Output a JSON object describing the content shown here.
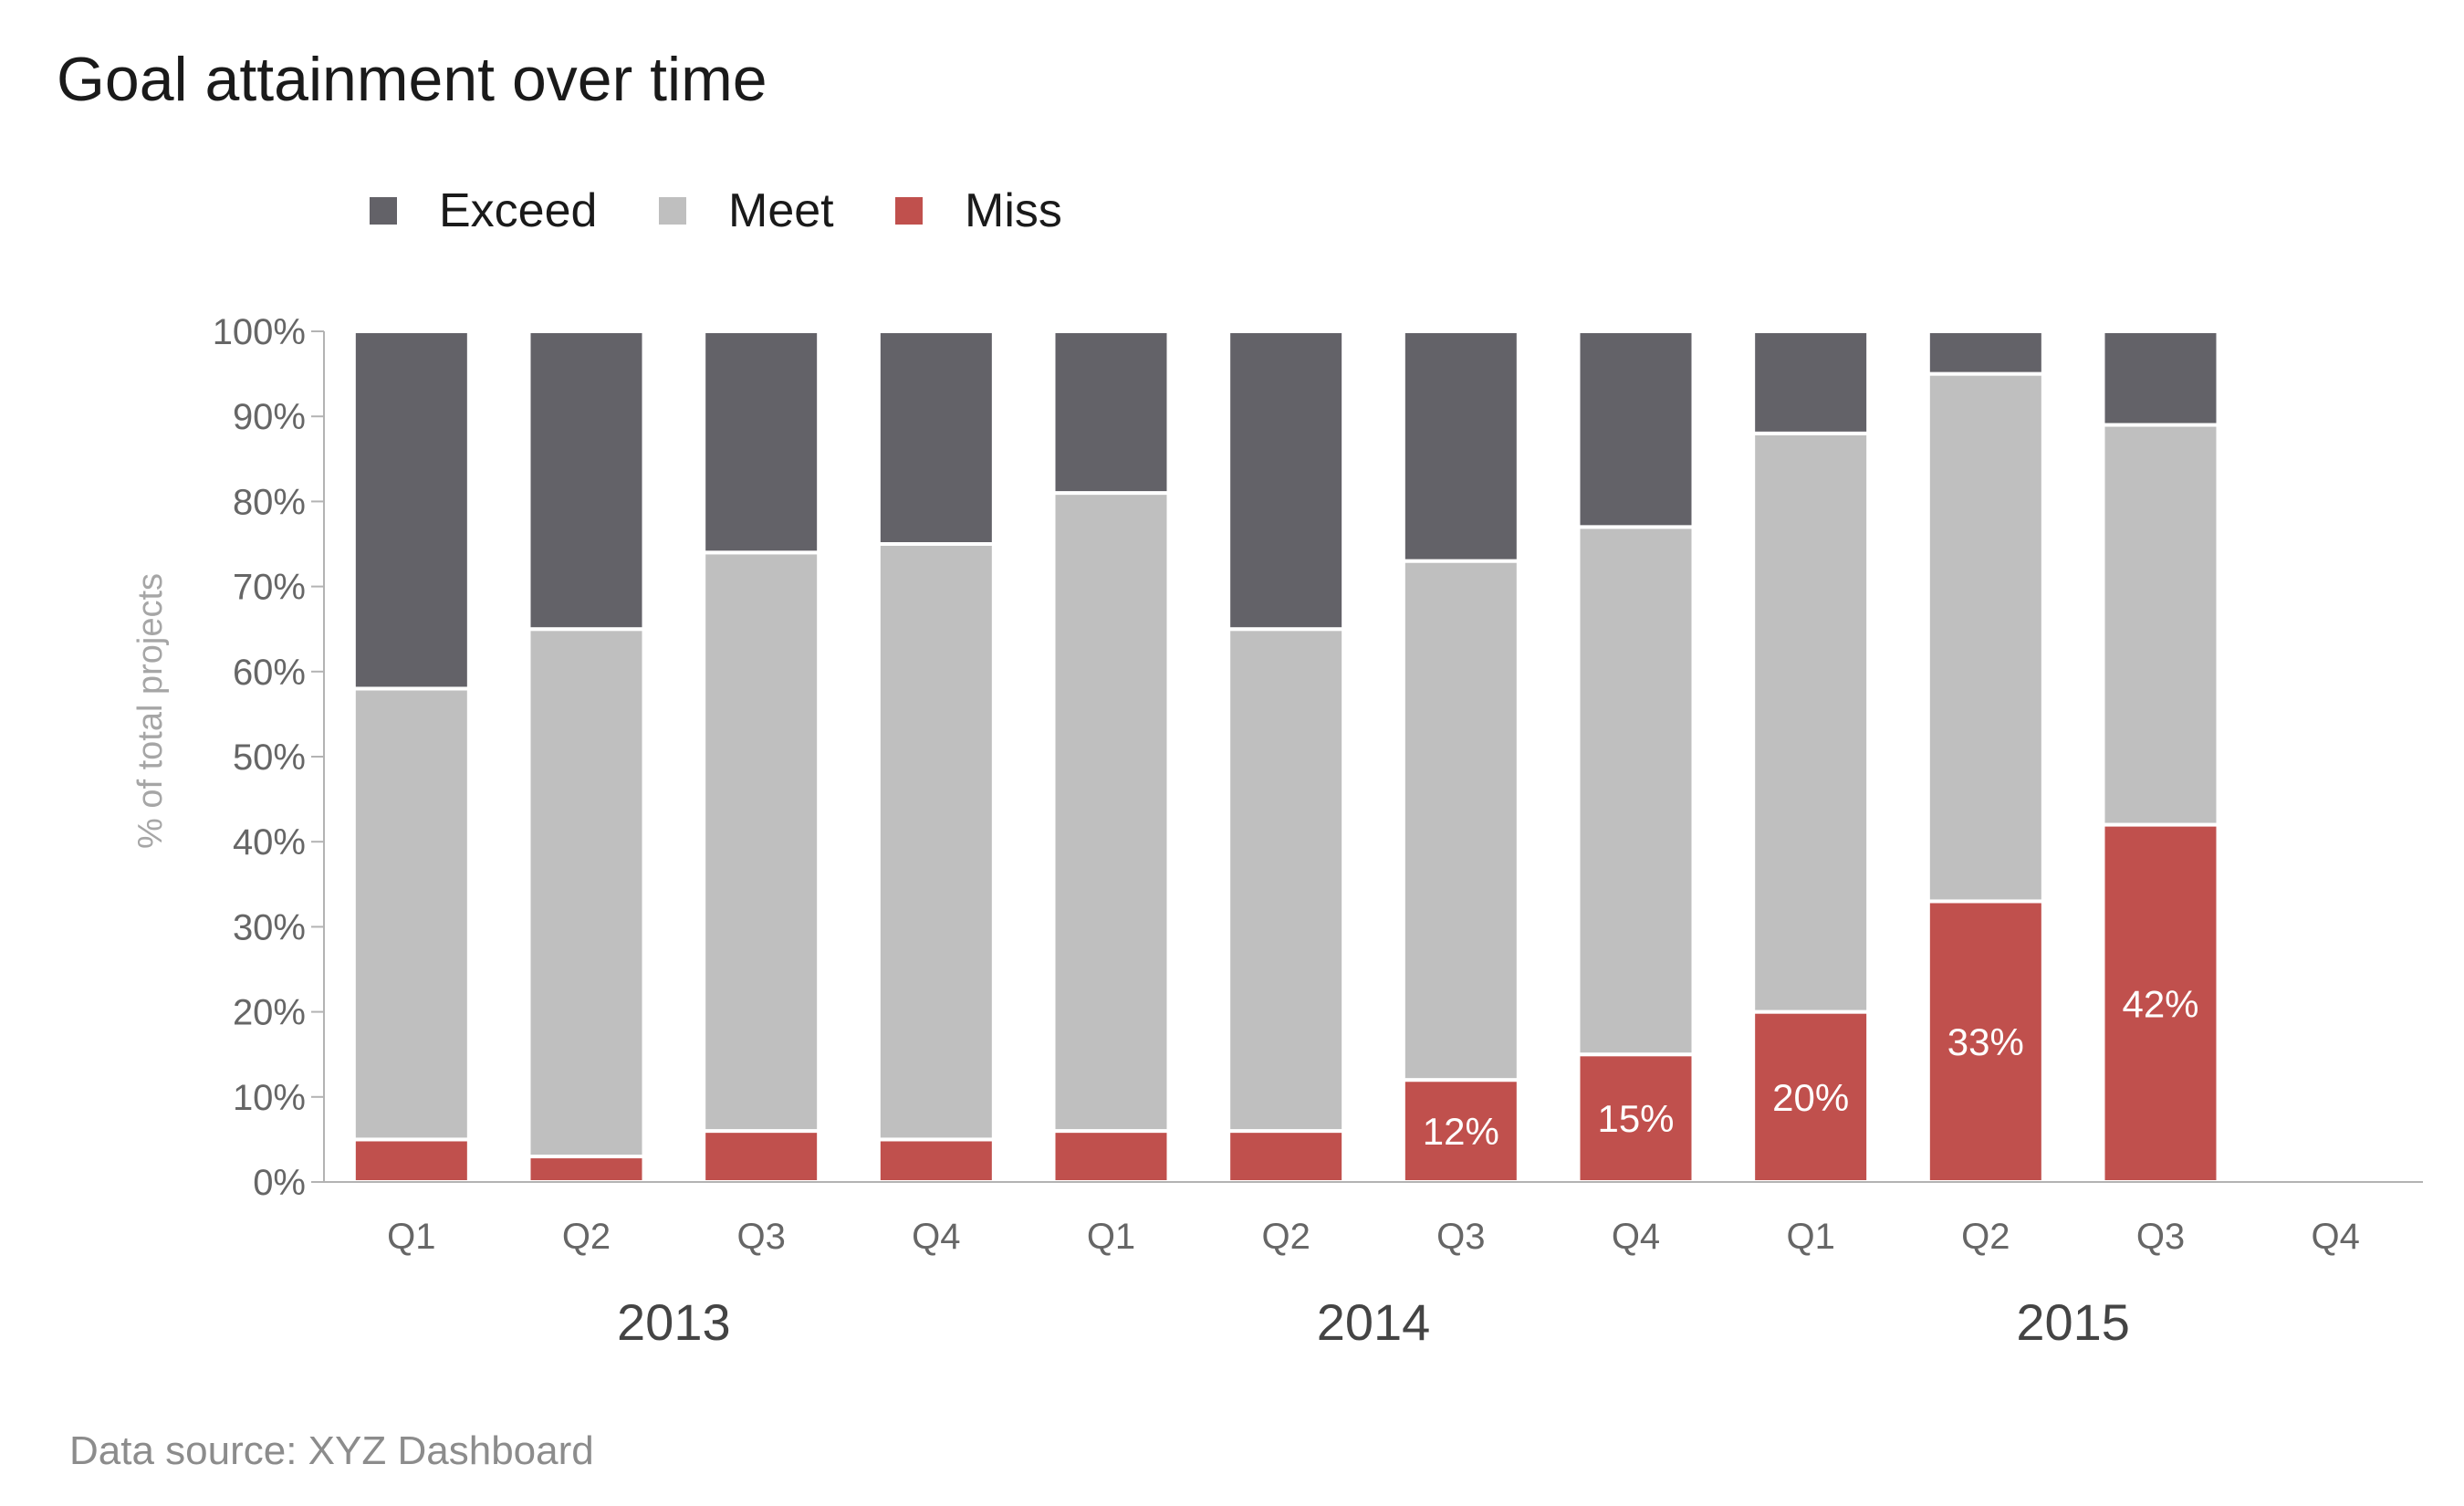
{
  "title": "Goal attainment over time",
  "source": "Data source: XYZ Dashboard",
  "colors": {
    "Exceed": "#636268",
    "Meet": "#bfbfbf",
    "Miss": "#c0504d",
    "axis": "#b3b3b3",
    "tick_text": "#666666",
    "ylabel": "#a6a6a6"
  },
  "chart_data": {
    "type": "bar",
    "stacked": true,
    "categories": [
      "Q1",
      "Q2",
      "Q3",
      "Q4",
      "Q1",
      "Q2",
      "Q3",
      "Q4",
      "Q1",
      "Q2",
      "Q3",
      "Q4"
    ],
    "groups": [
      {
        "label": "2013",
        "span": [
          0,
          3
        ]
      },
      {
        "label": "2014",
        "span": [
          4,
          7
        ]
      },
      {
        "label": "2015",
        "span": [
          8,
          11
        ]
      }
    ],
    "series": [
      {
        "name": "Miss",
        "values": [
          5,
          3,
          6,
          5,
          6,
          6,
          12,
          15,
          20,
          33,
          42,
          null
        ]
      },
      {
        "name": "Meet",
        "values": [
          53,
          62,
          68,
          70,
          75,
          59,
          61,
          62,
          68,
          62,
          47,
          null
        ]
      },
      {
        "name": "Exceed",
        "values": [
          42,
          35,
          26,
          25,
          19,
          35,
          27,
          23,
          12,
          5,
          11,
          null
        ]
      }
    ],
    "legend_order": [
      "Exceed",
      "Meet",
      "Miss"
    ],
    "data_labels": [
      {
        "index": 6,
        "text": "12%"
      },
      {
        "index": 7,
        "text": "15%"
      },
      {
        "index": 8,
        "text": "20%"
      },
      {
        "index": 9,
        "text": "33%"
      },
      {
        "index": 10,
        "text": "42%"
      }
    ],
    "ylabel": "% of total projects",
    "yticks": [
      "0%",
      "10%",
      "20%",
      "30%",
      "40%",
      "50%",
      "60%",
      "70%",
      "80%",
      "90%",
      "100%"
    ],
    "ylim": [
      0,
      100
    ],
    "legend_position": "top-left",
    "grid": false
  }
}
